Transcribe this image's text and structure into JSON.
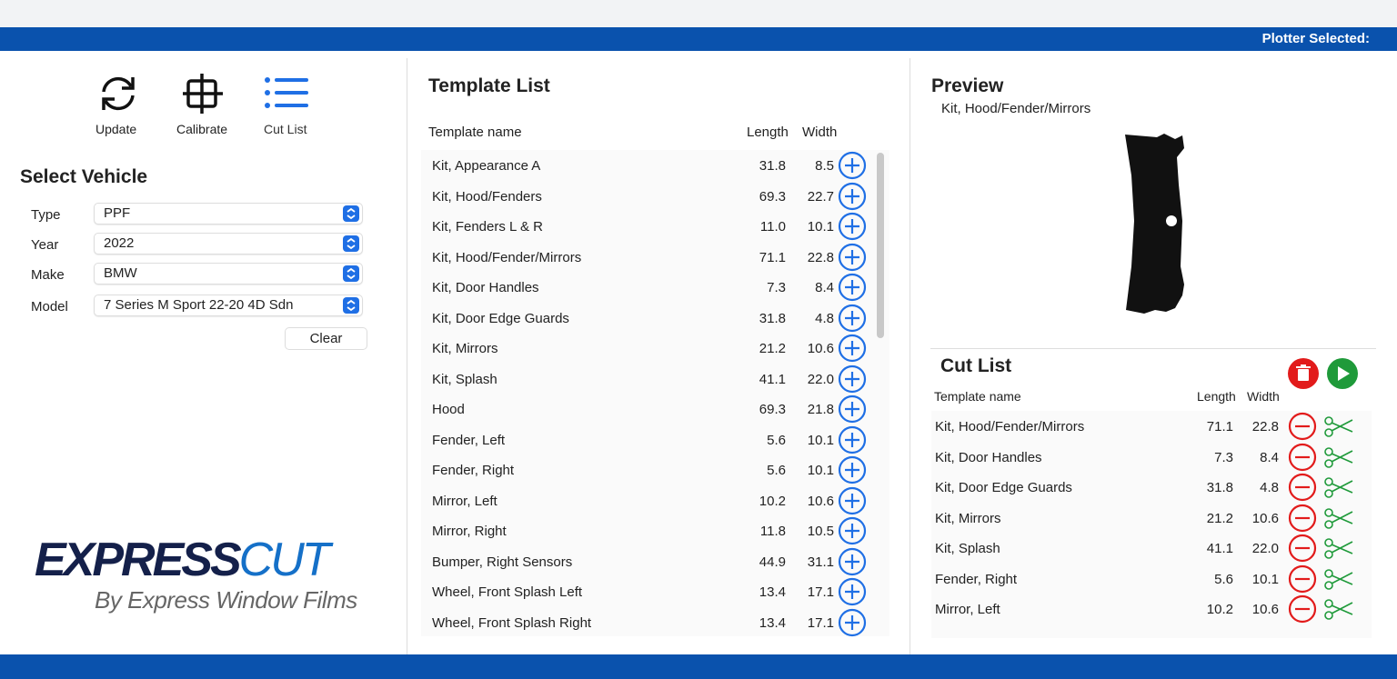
{
  "header": {
    "plotter_label": "Plotter Selected:"
  },
  "toolbar": {
    "buttons": [
      "Update",
      "Calibrate",
      "Cut List"
    ]
  },
  "vehicle": {
    "title": "Select Vehicle",
    "fields": [
      {
        "label": "Type",
        "value": "PPF"
      },
      {
        "label": "Year",
        "value": "2022"
      },
      {
        "label": "Make",
        "value": "BMW"
      },
      {
        "label": "Model",
        "value": "7 Series M Sport 22-20 4D Sdn"
      }
    ],
    "clear": "Clear"
  },
  "logo": {
    "brand_a": "EXPRESS",
    "brand_b": "CUT",
    "tagline": "By Express Window Films"
  },
  "templates": {
    "title": "Template List",
    "columns": [
      "Template name",
      "Length",
      "Width"
    ],
    "rows": [
      [
        "Kit, Appearance A",
        "31.8",
        "8.5"
      ],
      [
        "Kit, Hood/Fenders",
        "69.3",
        "22.7"
      ],
      [
        "Kit, Fenders L & R",
        "11.0",
        "10.1"
      ],
      [
        "Kit, Hood/Fender/Mirrors",
        "71.1",
        "22.8"
      ],
      [
        "Kit, Door Handles",
        "7.3",
        "8.4"
      ],
      [
        "Kit, Door Edge Guards",
        "31.8",
        "4.8"
      ],
      [
        "Kit, Mirrors",
        "21.2",
        "10.6"
      ],
      [
        "Kit, Splash",
        "41.1",
        "22.0"
      ],
      [
        "Hood",
        "69.3",
        "21.8"
      ],
      [
        "Fender, Left",
        "5.6",
        "10.1"
      ],
      [
        "Fender, Right",
        "5.6",
        "10.1"
      ],
      [
        "Mirror, Left",
        "10.2",
        "10.6"
      ],
      [
        "Mirror, Right",
        "11.8",
        "10.5"
      ],
      [
        "Bumper, Right Sensors",
        "44.9",
        "31.1"
      ],
      [
        "Wheel, Front Splash Left",
        "13.4",
        "17.1"
      ],
      [
        "Wheel, Front Splash Right",
        "13.4",
        "17.1"
      ]
    ]
  },
  "preview": {
    "title": "Preview",
    "name": "Kit, Hood/Fender/Mirrors"
  },
  "cut_list": {
    "title": "Cut List",
    "columns": [
      "Template name",
      "Length",
      "Width"
    ],
    "rows": [
      [
        "Kit, Hood/Fender/Mirrors",
        "71.1",
        "22.8"
      ],
      [
        "Kit, Door Handles",
        "7.3",
        "8.4"
      ],
      [
        "Kit, Door Edge Guards",
        "31.8",
        "4.8"
      ],
      [
        "Kit, Mirrors",
        "21.2",
        "10.6"
      ],
      [
        "Kit, Splash",
        "41.1",
        "22.0"
      ],
      [
        "Fender, Right",
        "5.6",
        "10.1"
      ],
      [
        "Mirror, Left",
        "10.2",
        "10.6"
      ]
    ]
  }
}
